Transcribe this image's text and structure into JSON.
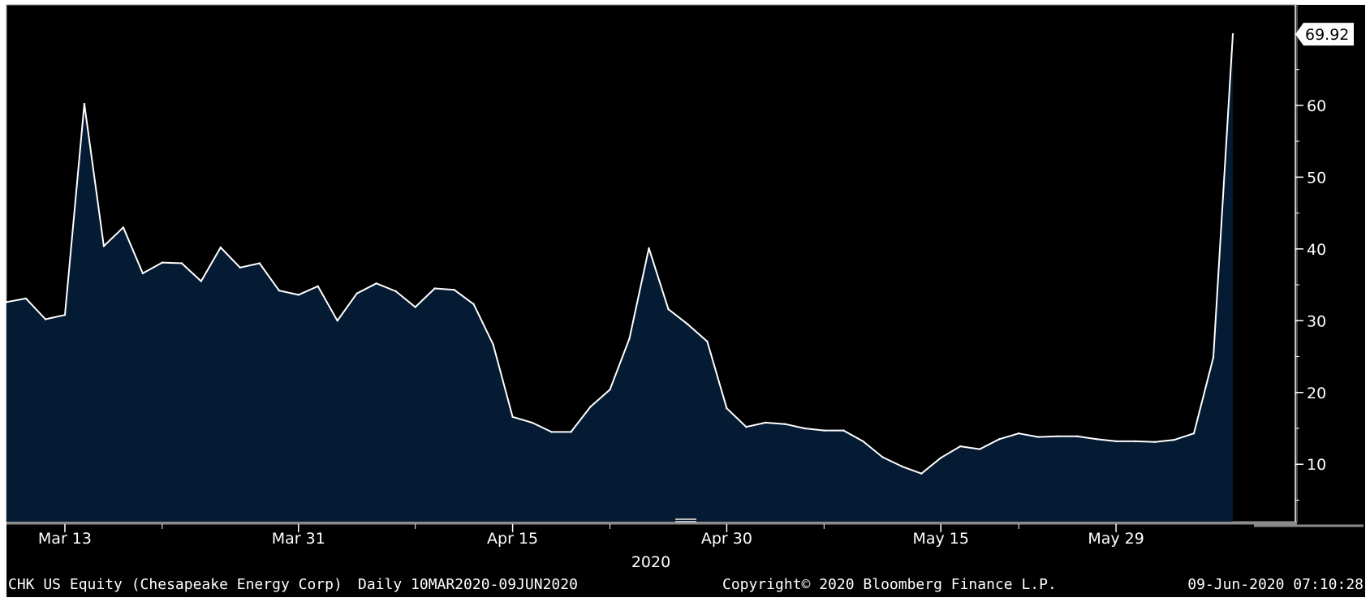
{
  "chart_data": {
    "type": "area",
    "ticker": "CHK US Equity (Chesapeake Energy Corp)",
    "period": "Daily 10MAR2020-09JUN2020",
    "copyright": "Copyright© 2020 Bloomberg Finance L.P.",
    "timestamp": "09-Jun-2020 07:10:28",
    "year_label": "2020",
    "last_value_label": "69.92",
    "ylim": [
      2,
      74
    ],
    "yticks": [
      10,
      20,
      30,
      40,
      50,
      60
    ],
    "ytick_labels": [
      "10",
      "20",
      "30",
      "40",
      "50",
      "60"
    ],
    "xtick_labels": [
      {
        "label": "Mar 13",
        "index": 3
      },
      {
        "label": "Mar 31",
        "index": 15
      },
      {
        "label": "Apr 15",
        "index": 26
      },
      {
        "label": "Apr 30",
        "index": 37
      },
      {
        "label": "May 15",
        "index": 48
      },
      {
        "label": "May 29",
        "index": 57
      }
    ],
    "minor_tick_indices": [
      8,
      21,
      31,
      42,
      52
    ],
    "colors": {
      "background": "#000000",
      "fill": "#051a33",
      "line": "#ffffff",
      "grid": "#ffffff"
    },
    "series": [
      {
        "values": [
          32.6,
          33.1,
          30.2,
          30.8,
          60.2,
          40.4,
          43.0,
          36.6,
          38.1,
          38.0,
          35.5,
          40.2,
          37.4,
          38.0,
          34.2,
          33.6,
          34.8,
          30.0,
          33.8,
          35.2,
          34.1,
          31.9,
          34.5,
          34.3,
          32.3,
          26.7,
          16.6,
          15.8,
          14.5,
          14.5,
          18.0,
          20.4,
          27.5,
          40.1,
          31.6,
          29.5,
          27.1,
          17.8,
          15.2,
          15.8,
          15.6,
          15.0,
          14.7,
          14.7,
          13.2,
          11.0,
          9.7,
          8.7,
          10.9,
          12.5,
          12.1,
          13.5,
          14.3,
          13.8,
          13.9,
          13.9,
          13.5,
          13.2,
          13.2,
          13.1,
          13.4,
          14.3,
          24.9,
          69.92
        ]
      }
    ]
  }
}
